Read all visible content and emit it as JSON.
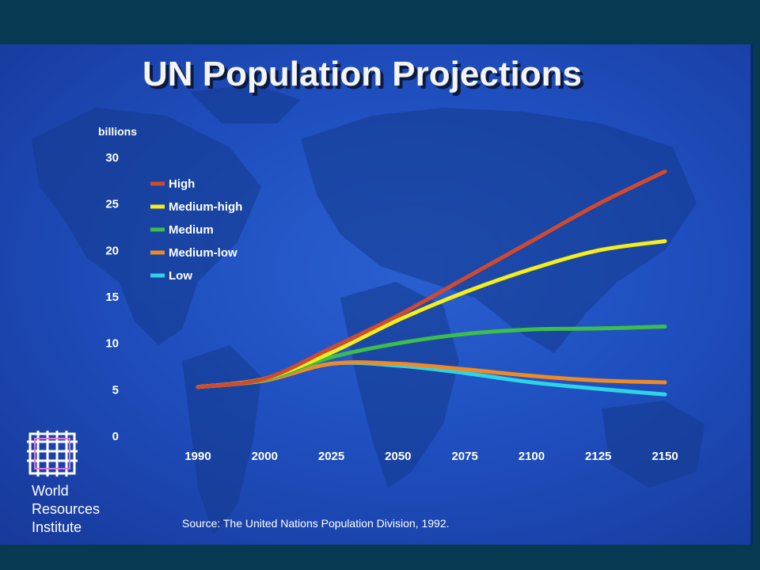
{
  "colors": {
    "background": "#063a52",
    "slide": "#1f4fbf",
    "High": "#d24a2c",
    "Medium-high": "#f4ee1c",
    "Medium": "#3bbf4a",
    "Medium-low": "#f08a25",
    "Low": "#2fd3e6"
  },
  "chart_data": {
    "type": "line",
    "title": "UN Population Projections",
    "ylabel": "billions",
    "ylim": [
      0,
      30
    ],
    "yticks": [
      "0",
      "5",
      "10",
      "15",
      "20",
      "25",
      "30"
    ],
    "categories": [
      "1990",
      "2000",
      "2025",
      "2050",
      "2075",
      "2100",
      "2125",
      "2150"
    ],
    "x": [
      1990,
      2000,
      2025,
      2050,
      2075,
      2100,
      2125,
      2150
    ],
    "series": [
      {
        "name": "High",
        "values": [
          5.3,
          6.2,
          9.5,
          13.0,
          17.0,
          21.0,
          25.0,
          28.5
        ]
      },
      {
        "name": "Medium-high",
        "values": [
          5.3,
          6.2,
          9.0,
          12.5,
          15.5,
          18.0,
          20.0,
          21.0
        ]
      },
      {
        "name": "Medium",
        "values": [
          5.3,
          6.1,
          8.5,
          10.0,
          11.0,
          11.5,
          11.6,
          11.8
        ]
      },
      {
        "name": "Medium-low",
        "values": [
          5.3,
          6.0,
          7.8,
          7.8,
          7.2,
          6.5,
          6.0,
          5.8
        ]
      },
      {
        "name": "Low",
        "values": [
          5.3,
          6.0,
          7.8,
          7.6,
          6.8,
          5.8,
          5.1,
          4.5
        ]
      }
    ],
    "legend_position": "top-left",
    "grid": false
  },
  "source": "Source: The United Nations Population Division, 1992.",
  "logo": {
    "line1": "World",
    "line2": "Resources",
    "line3": "Institute"
  }
}
